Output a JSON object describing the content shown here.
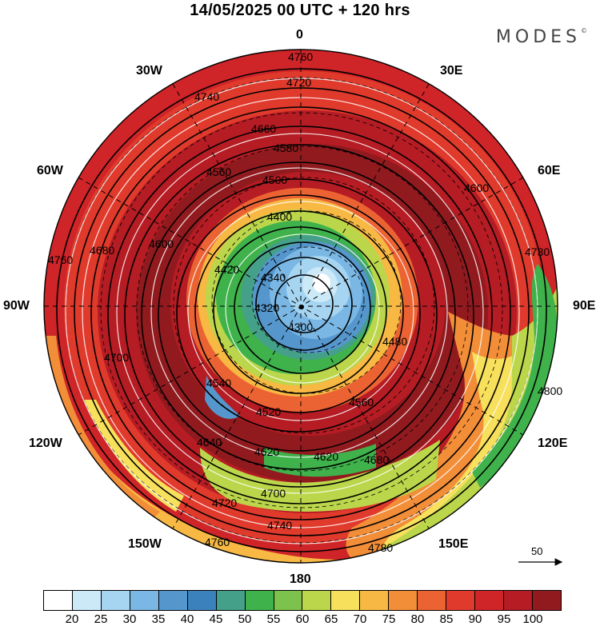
{
  "header": {
    "title": "14/05/2025  00 UTC  + 120 hrs",
    "brand": "MODES",
    "brand_mark": "©"
  },
  "longitude_labels": {
    "n": "0",
    "ne": "30E",
    "e1": "60E",
    "e": "90E",
    "se1": "120E",
    "se": "150E",
    "s": "180",
    "sw": "150W",
    "sw1": "120W",
    "w": "90W",
    "nw1": "60W",
    "nw": "30W"
  },
  "contour_labels": [
    "4760",
    "4740",
    "4720",
    "4660",
    "4580",
    "4560",
    "4500",
    "4400",
    "4340",
    "4320",
    "4420",
    "4520",
    "4540",
    "4620",
    "4640",
    "4680",
    "4700",
    "4780",
    "4800",
    "4730",
    "4300",
    "4480",
    "4560",
    "4600",
    "4620",
    "4600",
    "4680",
    "4700",
    "4720",
    "4740",
    "4760",
    "4760"
  ],
  "vector_reference": {
    "value": "50"
  },
  "colorbar": {
    "colors": [
      "#ffffff",
      "#cce9f8",
      "#a6d5f2",
      "#7ab7e4",
      "#5597cd",
      "#3b82bd",
      "#45a08a",
      "#3fb24b",
      "#7cc24c",
      "#bcd64b",
      "#f7e05b",
      "#f7b943",
      "#f28d38",
      "#ec6333",
      "#e03a2c",
      "#cf2428",
      "#b51c23",
      "#911a1f"
    ],
    "tick_labels": [
      "20",
      "25",
      "30",
      "35",
      "40",
      "45",
      "50",
      "55",
      "60",
      "65",
      "70",
      "75",
      "80",
      "85",
      "90",
      "95",
      "100"
    ]
  },
  "colors": {
    "slow": "#45a08a",
    "fast": "#b51c23",
    "contour": "#000000",
    "streamline": "#ffffff"
  }
}
